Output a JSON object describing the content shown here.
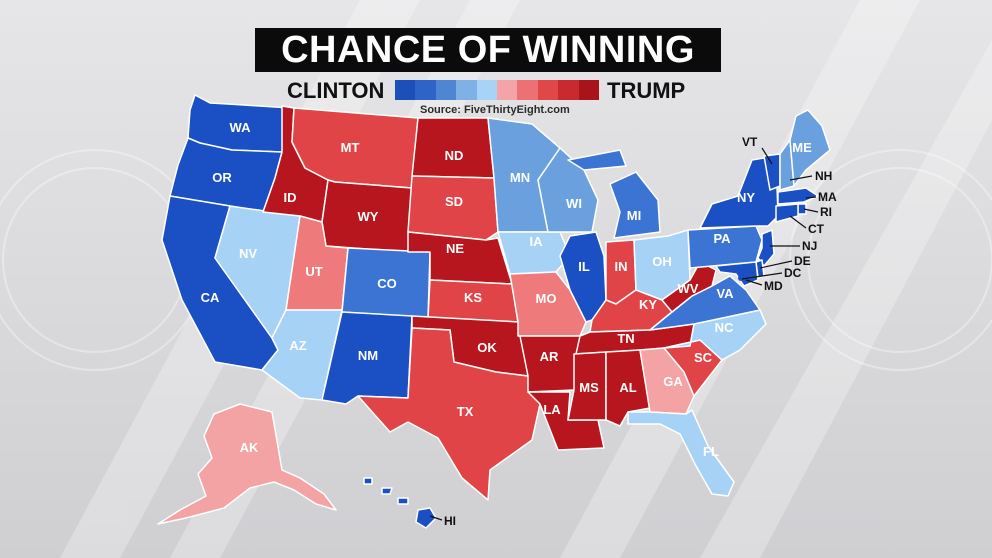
{
  "title": "CHANCE OF WINNING",
  "legend": {
    "left_candidate": "CLINTON",
    "right_candidate": "TRUMP",
    "scale_colors": [
      "#1c4fb8",
      "#2e64c8",
      "#4f86d4",
      "#7fb0e6",
      "#a9d3f6",
      "#f4a3a6",
      "#ec7074",
      "#e04848",
      "#c92a30",
      "#a8141c"
    ],
    "source": "Source: FiveThirtyEight.com"
  },
  "colors": {
    "strong_clinton": "#1b4fc4",
    "likely_clinton": "#3c74d4",
    "lean_clinton": "#6aa0de",
    "tilt_clinton": "#a6d2f6",
    "tilt_trump": "#f3a3a4",
    "lean_trump": "#ef7a7c",
    "likely_trump": "#e04446",
    "strong_trump": "#b8161e"
  },
  "states": [
    {
      "abbr": "WA",
      "rating": "strong_clinton"
    },
    {
      "abbr": "OR",
      "rating": "strong_clinton"
    },
    {
      "abbr": "CA",
      "rating": "strong_clinton"
    },
    {
      "abbr": "NV",
      "rating": "tilt_clinton"
    },
    {
      "abbr": "ID",
      "rating": "strong_trump"
    },
    {
      "abbr": "MT",
      "rating": "likely_trump"
    },
    {
      "abbr": "WY",
      "rating": "strong_trump"
    },
    {
      "abbr": "UT",
      "rating": "lean_trump"
    },
    {
      "abbr": "AZ",
      "rating": "tilt_clinton"
    },
    {
      "abbr": "CO",
      "rating": "likely_clinton"
    },
    {
      "abbr": "NM",
      "rating": "strong_clinton"
    },
    {
      "abbr": "ND",
      "rating": "strong_trump"
    },
    {
      "abbr": "SD",
      "rating": "likely_trump"
    },
    {
      "abbr": "NE",
      "rating": "strong_trump"
    },
    {
      "abbr": "KS",
      "rating": "likely_trump"
    },
    {
      "abbr": "OK",
      "rating": "strong_trump"
    },
    {
      "abbr": "TX",
      "rating": "likely_trump"
    },
    {
      "abbr": "MN",
      "rating": "lean_clinton"
    },
    {
      "abbr": "IA",
      "rating": "tilt_clinton"
    },
    {
      "abbr": "MO",
      "rating": "lean_trump"
    },
    {
      "abbr": "AR",
      "rating": "strong_trump"
    },
    {
      "abbr": "LA",
      "rating": "strong_trump"
    },
    {
      "abbr": "WI",
      "rating": "lean_clinton"
    },
    {
      "abbr": "IL",
      "rating": "strong_clinton"
    },
    {
      "abbr": "MI",
      "rating": "likely_clinton"
    },
    {
      "abbr": "IN",
      "rating": "likely_trump"
    },
    {
      "abbr": "OH",
      "rating": "tilt_clinton"
    },
    {
      "abbr": "KY",
      "rating": "likely_trump"
    },
    {
      "abbr": "TN",
      "rating": "strong_trump"
    },
    {
      "abbr": "MS",
      "rating": "strong_trump"
    },
    {
      "abbr": "AL",
      "rating": "strong_trump"
    },
    {
      "abbr": "GA",
      "rating": "tilt_trump"
    },
    {
      "abbr": "FL",
      "rating": "tilt_clinton"
    },
    {
      "abbr": "SC",
      "rating": "likely_trump"
    },
    {
      "abbr": "NC",
      "rating": "tilt_clinton"
    },
    {
      "abbr": "VA",
      "rating": "likely_clinton"
    },
    {
      "abbr": "WV",
      "rating": "strong_trump"
    },
    {
      "abbr": "PA",
      "rating": "likely_clinton"
    },
    {
      "abbr": "NY",
      "rating": "strong_clinton"
    },
    {
      "abbr": "VT",
      "rating": "strong_clinton"
    },
    {
      "abbr": "NH",
      "rating": "lean_clinton"
    },
    {
      "abbr": "ME",
      "rating": "lean_clinton"
    },
    {
      "abbr": "MA",
      "rating": "strong_clinton"
    },
    {
      "abbr": "RI",
      "rating": "strong_clinton"
    },
    {
      "abbr": "CT",
      "rating": "strong_clinton"
    },
    {
      "abbr": "NJ",
      "rating": "strong_clinton"
    },
    {
      "abbr": "DE",
      "rating": "strong_clinton"
    },
    {
      "abbr": "MD",
      "rating": "strong_clinton"
    },
    {
      "abbr": "DC",
      "rating": "strong_clinton"
    },
    {
      "abbr": "AK",
      "rating": "tilt_trump"
    },
    {
      "abbr": "HI",
      "rating": "strong_clinton"
    }
  ]
}
